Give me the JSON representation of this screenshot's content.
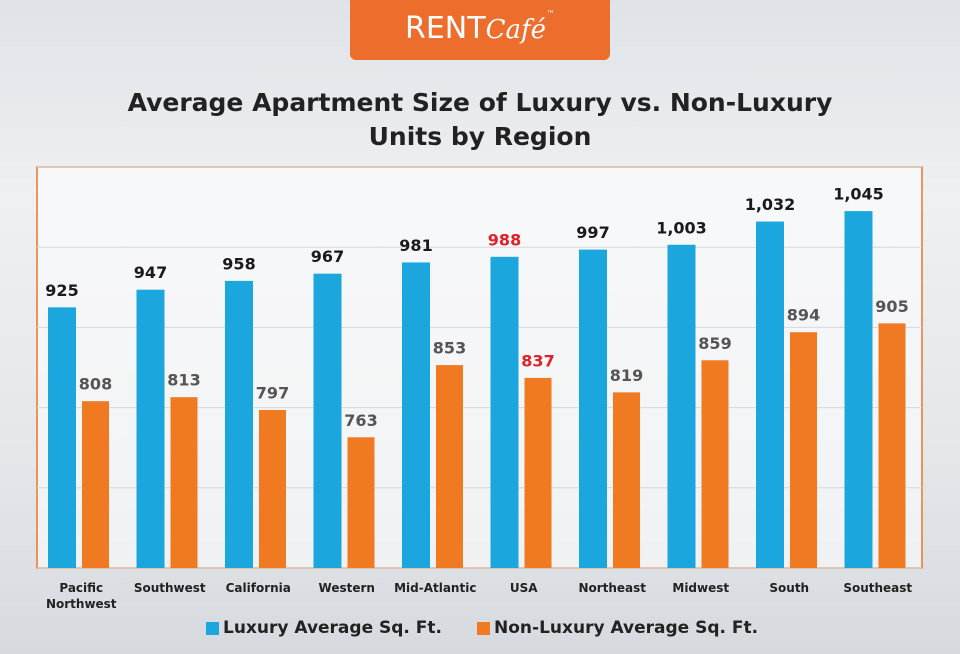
{
  "logo": {
    "text": "RENT",
    "script": "Café",
    "mark": "™"
  },
  "chart_data": {
    "type": "bar",
    "title": "Average Apartment Size of Luxury vs. Non-Luxury Units by Region",
    "categories": [
      "Pacific Northwest",
      "Southwest",
      "California",
      "Western",
      "Mid-Atlantic",
      "USA",
      "Northeast",
      "Midwest",
      "South",
      "Southeast"
    ],
    "series": [
      {
        "name": "Luxury Average Sq. Ft.",
        "color": "#1ba6dd",
        "values": [
          925,
          947,
          958,
          967,
          981,
          988,
          997,
          1003,
          1032,
          1045
        ],
        "value_labels": [
          "925",
          "947",
          "958",
          "967",
          "981",
          "988",
          "997",
          "1,003",
          "1,032",
          "1,045"
        ]
      },
      {
        "name": "Non-Luxury Average Sq. Ft.",
        "color": "#f07a22",
        "values": [
          808,
          813,
          797,
          763,
          853,
          837,
          819,
          859,
          894,
          905
        ]
      }
    ],
    "ylim": [
      600,
      1100
    ],
    "yticks": [
      600,
      700,
      800,
      900,
      1000,
      1100
    ],
    "ytick_labels": false,
    "grid": true,
    "highlight_index": 5,
    "highlight_color": "#e3202a",
    "legend": "bottom"
  }
}
